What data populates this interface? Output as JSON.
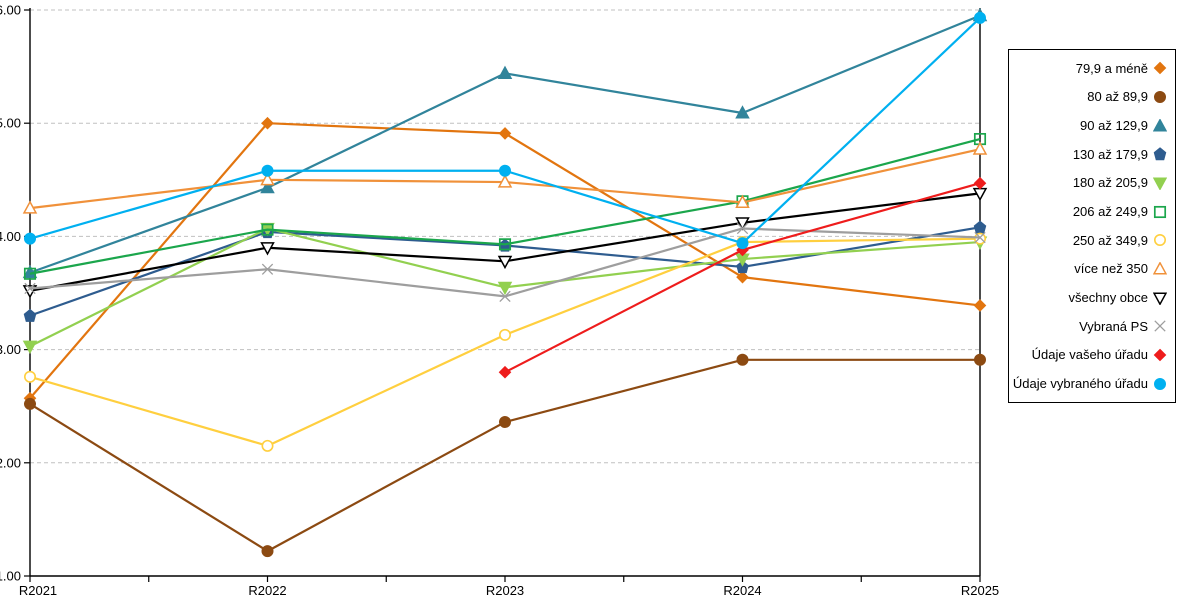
{
  "chart_data": {
    "type": "line",
    "title": "",
    "xlabel": "",
    "ylabel": "",
    "x_labels": [
      "R2021",
      "R2022",
      "R2023",
      "R2024",
      "R2025"
    ],
    "y_tick_labels": [
      "1.00",
      "2.00",
      "3.00",
      "4.00",
      "5.00",
      "6.00"
    ],
    "ylim": [
      1.0,
      6.0
    ],
    "grid": "horizontal-dashed",
    "legend_position": "right",
    "series": [
      {
        "name": "79,9 a méně",
        "color": "#E2750F",
        "marker": "diamond",
        "filled": true,
        "values": [
          2.57,
          5.0,
          4.91,
          3.64,
          3.39
        ]
      },
      {
        "name": "80 až 89,9",
        "color": "#8C4A12",
        "marker": "circle",
        "filled": true,
        "values": [
          2.52,
          1.22,
          2.36,
          2.91,
          2.91
        ]
      },
      {
        "name": "90 až 129,9",
        "color": "#31849B",
        "marker": "triangle-up",
        "filled": true,
        "values": [
          3.68,
          4.43,
          5.44,
          5.09,
          5.95
        ]
      },
      {
        "name": "130 až 179,9",
        "color": "#2E5C8F",
        "marker": "pentagon",
        "filled": true,
        "values": [
          3.3,
          4.04,
          3.92,
          3.73,
          4.08
        ]
      },
      {
        "name": "180 až 205,9",
        "color": "#92D050",
        "marker": "triangle-down",
        "filled": true,
        "values": [
          3.03,
          4.07,
          3.55,
          3.8,
          3.95
        ]
      },
      {
        "name": "206 až 249,9",
        "color": "#1BA64C",
        "marker": "square",
        "filled": false,
        "values": [
          3.67,
          4.06,
          3.93,
          4.31,
          4.86
        ]
      },
      {
        "name": "250 až 349,9",
        "color": "#FFCF3F",
        "marker": "circle",
        "filled": false,
        "values": [
          2.76,
          2.15,
          3.13,
          3.95,
          3.98
        ]
      },
      {
        "name": "více než 350",
        "color": "#F0913A",
        "marker": "triangle-up",
        "filled": false,
        "values": [
          4.25,
          4.5,
          4.48,
          4.3,
          4.77
        ]
      },
      {
        "name": "všechny obce",
        "color": "#000000",
        "marker": "triangle-down",
        "filled": false,
        "values": [
          3.52,
          3.9,
          3.78,
          4.12,
          4.38
        ]
      },
      {
        "name": "Vybraná PS",
        "color": "#9E9E9E",
        "marker": "x",
        "filled": false,
        "values": [
          3.54,
          3.71,
          3.47,
          4.07,
          3.99
        ]
      },
      {
        "name": "Údaje vašeho úřadu",
        "color": "#EE1C1C",
        "marker": "diamond",
        "filled": true,
        "values": [
          null,
          null,
          2.8,
          3.88,
          4.47
        ]
      },
      {
        "name": "Údaje vybraného úřadu",
        "color": "#00B0F0",
        "marker": "circle",
        "filled": true,
        "values": [
          3.98,
          4.58,
          4.58,
          3.94,
          5.93
        ]
      }
    ]
  },
  "style_colors": {
    "grid": "#C0C0C0",
    "axis": "#000000",
    "tick_label": "#000000",
    "legend_border": "#000000",
    "legend_text": "#000000"
  }
}
